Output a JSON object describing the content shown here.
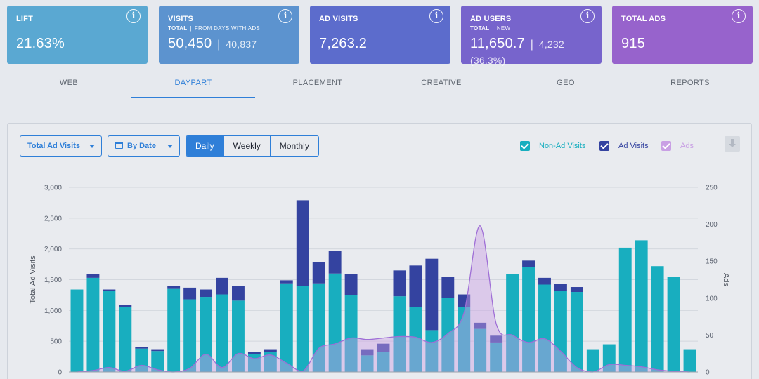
{
  "cards": [
    {
      "title": "LIFT",
      "value": "21.63%",
      "color": "#5aa8d2"
    },
    {
      "title": "VISITS",
      "sub_a": "TOTAL",
      "sub_b": "FROM DAYS WITH ADS",
      "value": "50,450",
      "secondary": "40,837",
      "color": "#5c93cf"
    },
    {
      "title": "AD VISITS",
      "value": "7,263.2",
      "color": "#5c6ccc"
    },
    {
      "title": "AD USERS",
      "sub_a": "TOTAL",
      "sub_b": "NEW",
      "value": "11,650.7",
      "secondary": "4,232 (36.3%)",
      "color": "#7764cc"
    },
    {
      "title": "TOTAL ADS",
      "value": "915",
      "color": "#9763cc"
    }
  ],
  "info_glyph": "i",
  "tabs": [
    "WEB",
    "DAYPART",
    "PLACEMENT",
    "CREATIVE",
    "GEO",
    "REPORTS"
  ],
  "active_tab": "DAYPART",
  "controls": {
    "metric_dropdown": "Total Ad Visits",
    "date_dropdown": "By Date",
    "periods": [
      "Daily",
      "Weekly",
      "Monthly"
    ],
    "active_period": "Daily"
  },
  "legend": [
    {
      "label": "Non-Ad Visits",
      "color": "#18aebf",
      "checked": true
    },
    {
      "label": "Ad Visits",
      "color": "#3443a0",
      "checked": true
    },
    {
      "label": "Ads",
      "color": "#c9a0e4",
      "checked": true
    }
  ],
  "chart_data": {
    "type": "bar",
    "stacked": true,
    "ylabel": "Total Ad Visits",
    "y2label": "Ads",
    "ylim": [
      0,
      3000
    ],
    "y2lim": [
      0,
      250
    ],
    "yticks": [
      "0",
      "500",
      "1,000",
      "1,500",
      "2,000",
      "2,500",
      "3,000"
    ],
    "y2ticks": [
      "0",
      "50",
      "100",
      "150",
      "200",
      "250"
    ],
    "series": [
      {
        "name": "Non-Ad Visits",
        "color": "#18aebf",
        "values": [
          1340,
          1530,
          1320,
          1060,
          380,
          340,
          1350,
          1180,
          1220,
          1260,
          1160,
          290,
          320,
          1440,
          1400,
          1440,
          1600,
          1250,
          270,
          330,
          1230,
          1050,
          680,
          1200,
          1060,
          700,
          480,
          1590,
          1700,
          1420,
          1320,
          1300,
          370,
          450,
          2020,
          2140,
          1720,
          1550,
          370
        ]
      },
      {
        "name": "Ad Visits",
        "color": "#3443a0",
        "values": [
          0,
          60,
          20,
          30,
          30,
          30,
          50,
          190,
          120,
          270,
          240,
          40,
          50,
          50,
          1390,
          340,
          370,
          340,
          100,
          130,
          420,
          680,
          1160,
          340,
          200,
          100,
          110,
          0,
          110,
          110,
          110,
          80,
          0,
          0,
          0,
          0,
          0,
          0,
          0
        ]
      },
      {
        "name": "Ads",
        "color": "#c9a0e4",
        "values": [
          0,
          2,
          6,
          1,
          9,
          3,
          0,
          5,
          24,
          6,
          25,
          18,
          23,
          12,
          1,
          32,
          38,
          46,
          44,
          46,
          48,
          47,
          40,
          52,
          80,
          198,
          65,
          50,
          40,
          45,
          28,
          6,
          0,
          10,
          9,
          7,
          3,
          1,
          0
        ]
      }
    ]
  }
}
